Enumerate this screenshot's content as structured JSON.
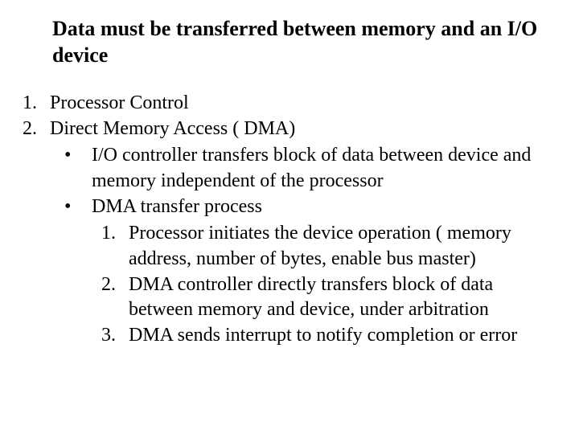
{
  "title": "Data must be transferred between memory and an I/O device",
  "item1_num": "1.",
  "item1_text": "Processor Control",
  "item2_num": "2.",
  "item2_text": "Direct Memory Access ( DMA)",
  "bullet_glyph": "•",
  "sub1_text": "I/O controller transfers block of data between device and memory independent of the processor",
  "sub2_text": "DMA transfer process",
  "step1_num": "1.",
  "step1_text": "Processor initiates the device operation ( memory address, number of bytes, enable bus master)",
  "step2_num": "2.",
  "step2_text": "DMA controller directly transfers block of data between memory and device, under arbitration",
  "step3_num": "3.",
  "step3_text": "DMA sends interrupt to notify completion or error",
  "colors": {
    "background": "#ffffff",
    "text": "#000000"
  },
  "typography": {
    "base_fontsize": 24,
    "title_fontsize": 26,
    "font_family": "Times New Roman",
    "title_weight": "bold"
  }
}
